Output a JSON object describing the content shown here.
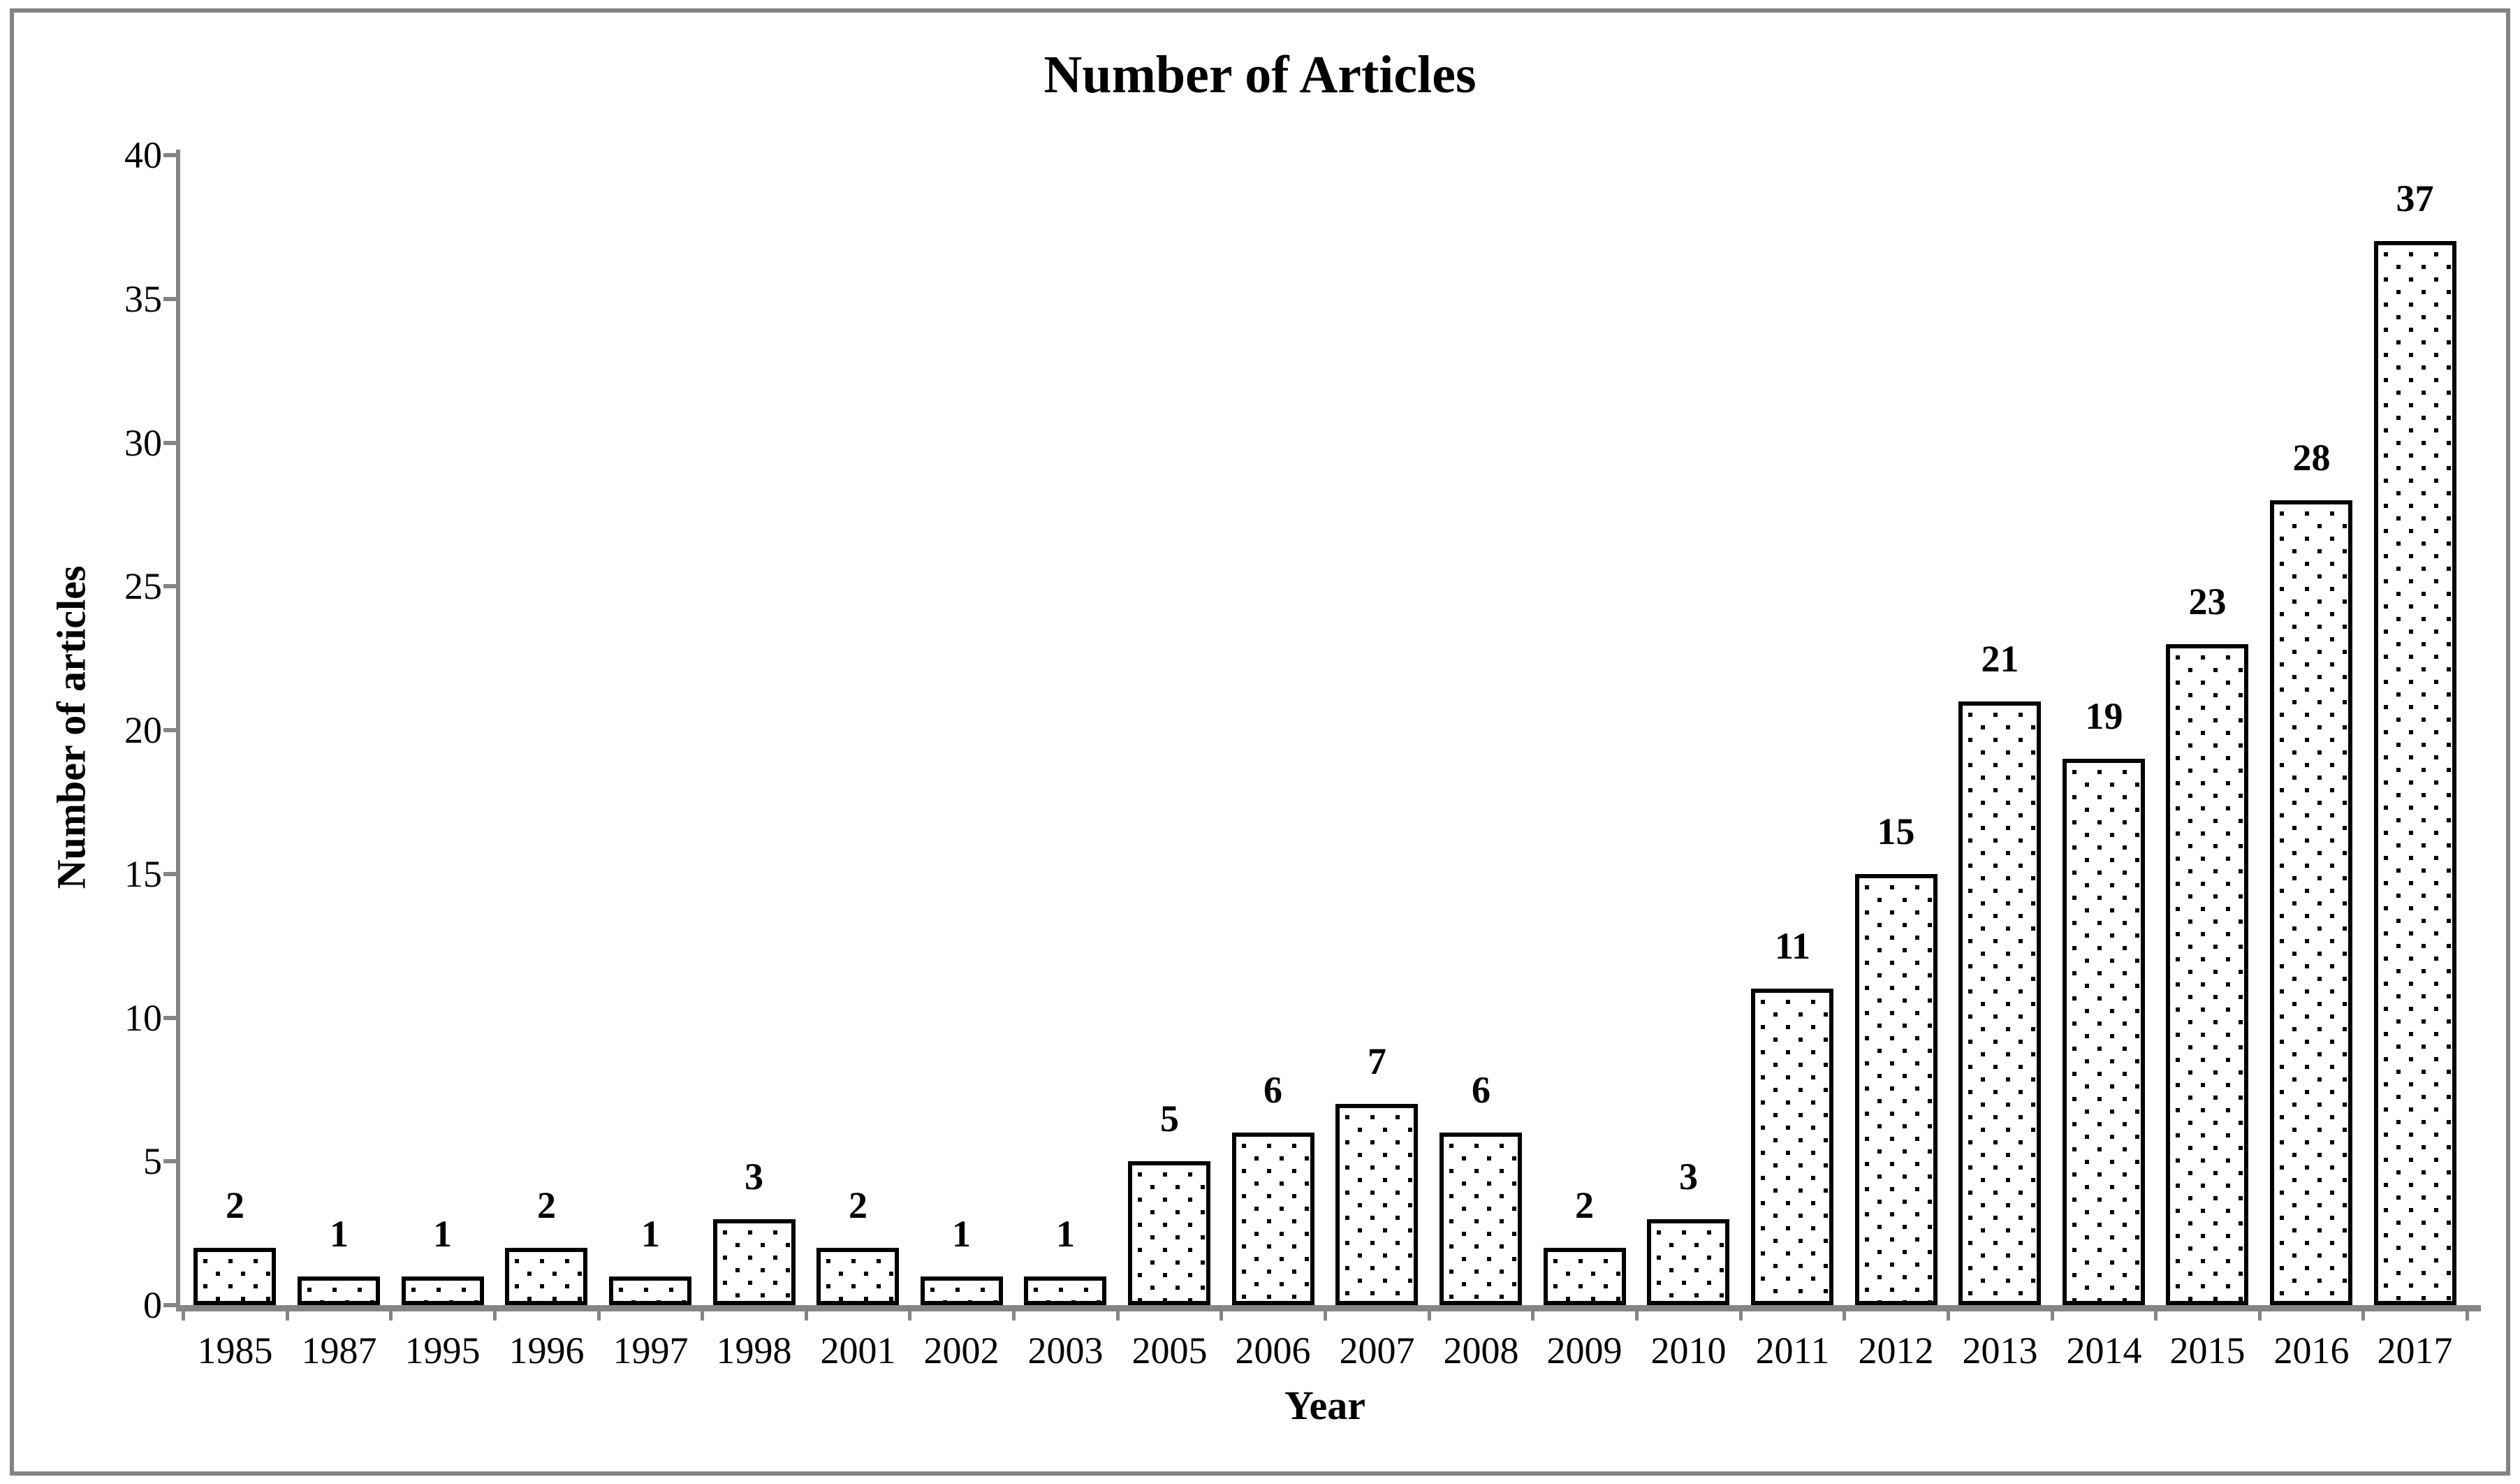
{
  "page": {
    "background": "#ffffff",
    "frame_border_color": "#838383",
    "axis_color": "#858585",
    "text_color": "#000000"
  },
  "chart_data": {
    "type": "bar",
    "title": "Number of Articles",
    "xlabel": "Year",
    "ylabel": "Number of articles",
    "categories": [
      "1985",
      "1987",
      "1995",
      "1996",
      "1997",
      "1998",
      "2001",
      "2002",
      "2003",
      "2005",
      "2006",
      "2007",
      "2008",
      "2009",
      "2010",
      "2011",
      "2012",
      "2013",
      "2014",
      "2015",
      "2016",
      "2017"
    ],
    "values": [
      2,
      1,
      1,
      2,
      1,
      3,
      2,
      1,
      1,
      5,
      6,
      7,
      6,
      2,
      3,
      11,
      15,
      21,
      19,
      23,
      28,
      37
    ],
    "data_labels": true,
    "ylim": [
      0,
      40
    ],
    "yticks": [
      0,
      5,
      10,
      15,
      20,
      25,
      30,
      35,
      40
    ],
    "grid": false,
    "legend": null,
    "bar_style": {
      "fill": "#ffffff",
      "pattern": "staggered-black-square-dots",
      "border_color": "#000000"
    }
  }
}
